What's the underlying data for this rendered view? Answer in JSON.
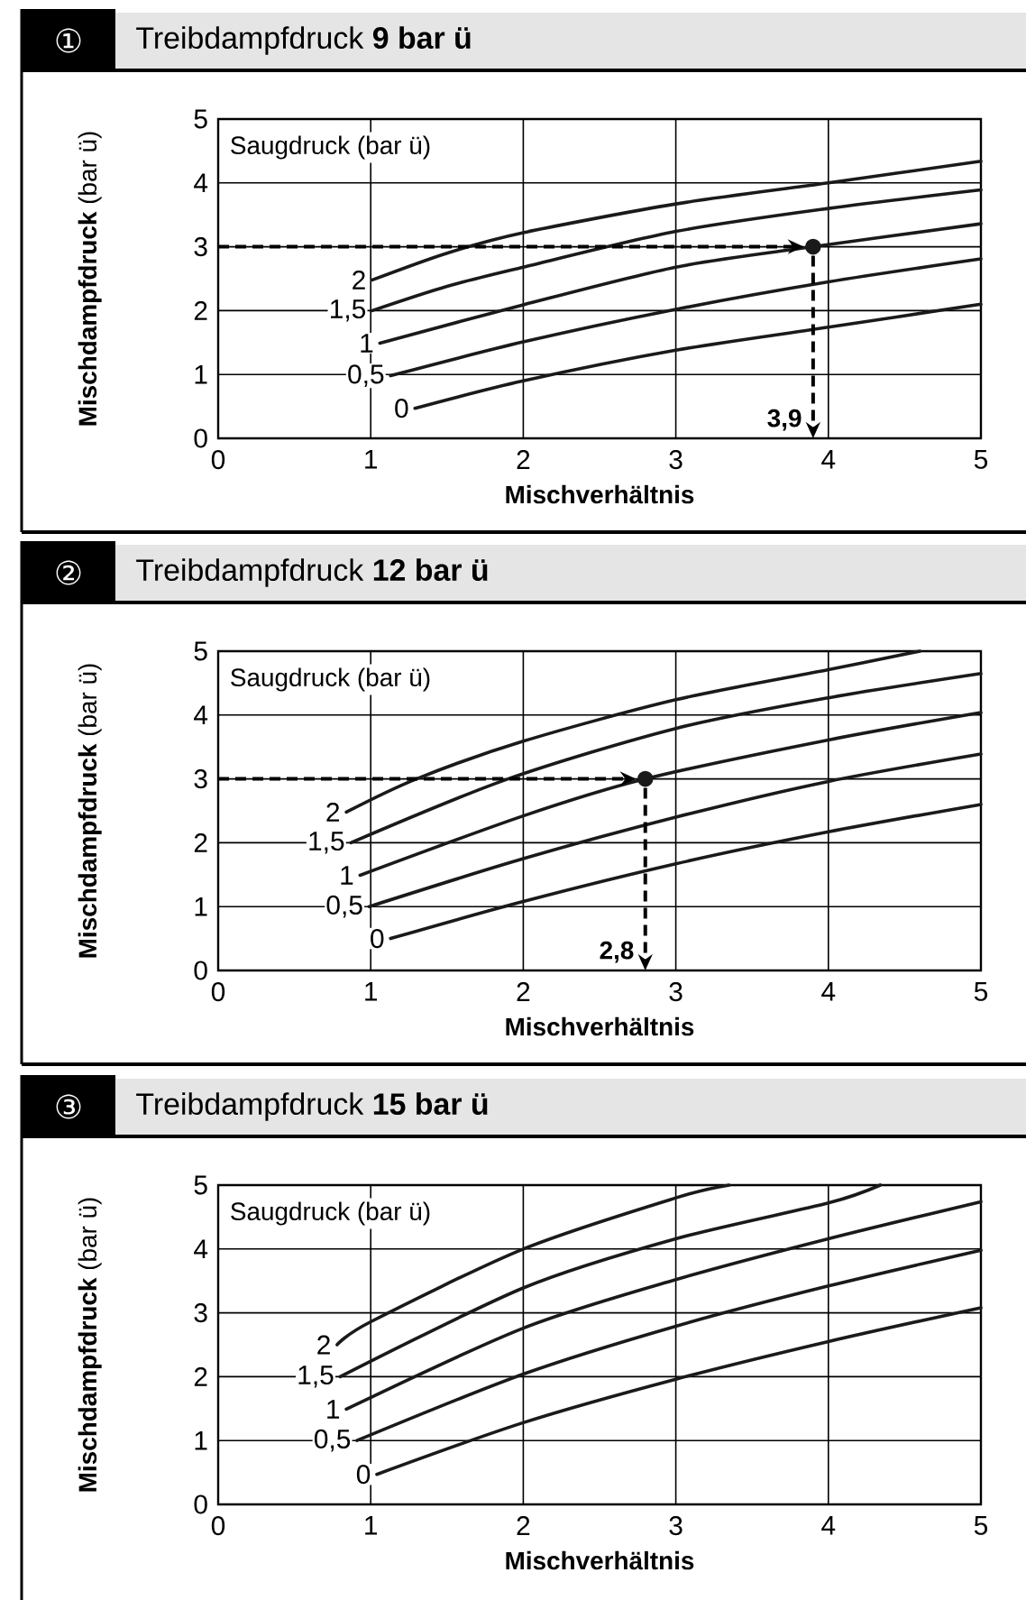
{
  "chart_data": [
    {
      "type": "line",
      "title": "Treibdampfdruck  **9 bar ü**",
      "xlabel": "Mischverhältnis",
      "ylabel": "**Mischdampfdruck** (bar ü)",
      "legend_title": "Saugdruck (bar ü)",
      "annotations": [
        "①",
        {
          "text": "3,9",
          "x": 3.9,
          "y": 3
        }
      ],
      "xlim": [
        0,
        5
      ],
      "ylim": [
        0,
        5
      ],
      "xticks": [
        0,
        1,
        2,
        3,
        4,
        5
      ],
      "yticks": [
        0,
        1,
        2,
        3,
        4,
        5
      ],
      "grid": true,
      "marker": "none",
      "line_style": "solid",
      "series": [
        {
          "name": "2",
          "color": "#1a1a1a",
          "x": [
            1.01,
            1.5,
            2,
            3,
            4,
            5
          ],
          "values": [
            2.48,
            2.9,
            3.22,
            3.67,
            4.0,
            4.34
          ]
        },
        {
          "name": "1,5",
          "color": "#1a1a1a",
          "x": [
            1.01,
            1.5,
            2,
            3,
            4,
            5
          ],
          "values": [
            2.0,
            2.38,
            2.68,
            3.24,
            3.6,
            3.89
          ]
        },
        {
          "name": "1",
          "color": "#1a1a1a",
          "x": [
            1.06,
            2,
            3,
            3.9,
            5
          ],
          "values": [
            1.49,
            2.09,
            2.68,
            3.0,
            3.36
          ]
        },
        {
          "name": "0,5",
          "color": "#1a1a1a",
          "x": [
            1.13,
            2,
            3,
            4,
            5
          ],
          "values": [
            0.98,
            1.51,
            2.02,
            2.45,
            2.81
          ]
        },
        {
          "name": "0",
          "color": "#1a1a1a",
          "x": [
            1.29,
            2,
            3,
            4,
            5
          ],
          "values": [
            0.47,
            0.9,
            1.38,
            1.74,
            2.1
          ]
        },
        {
          "type": "scatter",
          "marker": "circle",
          "color": "#1a1a1a",
          "x": [
            3.9
          ],
          "values": [
            3
          ]
        }
      ]
    },
    {
      "type": "line",
      "title": "Treibdampfdruck  **12 bar ü**",
      "xlabel": "Mischverhältnis",
      "ylabel": "**Mischdampfdruck** (bar ü)",
      "legend_title": "Saugdruck (bar ü)",
      "annotations": [
        "②",
        {
          "text": "2,8",
          "x": 2.8,
          "y": 3
        }
      ],
      "xlim": [
        0,
        5
      ],
      "ylim": [
        0,
        5
      ],
      "xticks": [
        0,
        1,
        2,
        3,
        4,
        5
      ],
      "yticks": [
        0,
        1,
        2,
        3,
        4,
        5
      ],
      "grid": true,
      "marker": "none",
      "line_style": "solid",
      "series": [
        {
          "name": "2",
          "color": "#1a1a1a",
          "x": [
            0.84,
            1.3,
            2,
            3,
            4,
            4.6
          ],
          "values": [
            2.48,
            3.0,
            3.59,
            4.24,
            4.71,
            5.0
          ]
        },
        {
          "name": "1,5",
          "color": "#1a1a1a",
          "x": [
            0.87,
            1.9,
            3,
            4,
            5
          ],
          "values": [
            2.0,
            3.0,
            3.79,
            4.27,
            4.65
          ]
        },
        {
          "name": "1",
          "color": "#1a1a1a",
          "x": [
            0.93,
            2,
            2.8,
            4,
            5
          ],
          "values": [
            1.49,
            2.42,
            3.0,
            3.61,
            4.04
          ]
        },
        {
          "name": "0,5",
          "color": "#1a1a1a",
          "x": [
            0.99,
            2,
            3,
            4,
            5
          ],
          "values": [
            1.0,
            1.75,
            2.4,
            2.96,
            3.39
          ]
        },
        {
          "name": "0",
          "color": "#1a1a1a",
          "x": [
            1.13,
            2,
            3,
            4,
            5
          ],
          "values": [
            0.5,
            1.08,
            1.67,
            2.17,
            2.6
          ]
        },
        {
          "type": "scatter",
          "marker": "circle",
          "color": "#1a1a1a",
          "x": [
            2.8
          ],
          "values": [
            3
          ]
        }
      ]
    },
    {
      "type": "line",
      "title": "Treibdampfdruck  **15 bar ü**",
      "xlabel": "Mischverhältnis",
      "ylabel": "**Mischdampfdruck** (bar ü)",
      "legend_title": "Saugdruck (bar ü)",
      "annotations": [
        "③"
      ],
      "xlim": [
        0,
        5
      ],
      "ylim": [
        0,
        5
      ],
      "xticks": [
        0,
        1,
        2,
        3,
        4,
        5
      ],
      "yticks": [
        0,
        1,
        2,
        3,
        4,
        5
      ],
      "grid": true,
      "marker": "none",
      "line_style": "solid",
      "series": [
        {
          "name": "2",
          "color": "#1a1a1a",
          "x": [
            0.78,
            1,
            2,
            3,
            3.35
          ],
          "values": [
            2.5,
            2.86,
            4.0,
            4.8,
            5.0
          ]
        },
        {
          "name": "1,5",
          "color": "#1a1a1a",
          "x": [
            0.8,
            2,
            3,
            4,
            4.34
          ],
          "values": [
            2.0,
            3.39,
            4.16,
            4.72,
            5.0
          ]
        },
        {
          "name": "1",
          "color": "#1a1a1a",
          "x": [
            0.84,
            2,
            3,
            4,
            5
          ],
          "values": [
            1.49,
            2.76,
            3.52,
            4.16,
            4.74
          ]
        },
        {
          "name": "0,5",
          "color": "#1a1a1a",
          "x": [
            0.91,
            2,
            3,
            4,
            5
          ],
          "values": [
            1.0,
            2.04,
            2.79,
            3.42,
            3.98
          ]
        },
        {
          "name": "0",
          "color": "#1a1a1a",
          "x": [
            1.04,
            2,
            3,
            4,
            5
          ],
          "values": [
            0.47,
            1.28,
            1.96,
            2.55,
            3.08
          ]
        }
      ]
    }
  ]
}
